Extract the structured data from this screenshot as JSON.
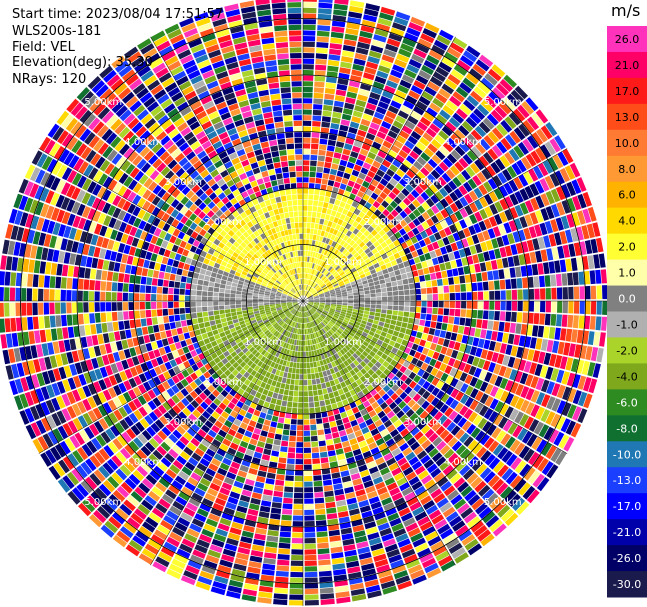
{
  "header": {
    "start_time": "Start time: 2023/08/04 17:51:57",
    "instrument": "WLS200s-181",
    "field": "Field: VEL",
    "elevation": "Elevation(deg): 35.30",
    "nrays": "NRays: 120"
  },
  "colorbar": {
    "unit": "m/s",
    "ticks": [
      "26.0",
      "21.0",
      "17.0",
      "13.0",
      "10.0",
      "8.0",
      "6.0",
      "4.0",
      "2.0",
      "1.0",
      "0.0",
      "-1.0",
      "-2.0",
      "-4.0",
      "-6.0",
      "-8.0",
      "-10.0",
      "-13.0",
      "-17.0",
      "-21.0",
      "-26.0",
      "-30.0"
    ],
    "colors": [
      "#ff33bb",
      "#ff0066",
      "#ff1a1a",
      "#ff4d1a",
      "#ff7a33",
      "#ff9933",
      "#ffb300",
      "#ffd900",
      "#ffff33",
      "#ffffaa",
      "#808080",
      "#b0b0b0",
      "#aad42a",
      "#7fa81c",
      "#2e8b22",
      "#0f7030",
      "#1f77b4",
      "#1a3fff",
      "#0000ff",
      "#0000aa",
      "#000066",
      "#1a1a4d"
    ]
  },
  "chart_data": {
    "type": "heatmap",
    "title": "",
    "field": "VEL",
    "unit": "m/s",
    "elevation_deg": 35.3,
    "n_rays": 120,
    "range_ring_labels": [
      "1.00km",
      "1.00km",
      "1.00km",
      "1.00km",
      "2.00km",
      "2.00km",
      "2.00km",
      "2.00km",
      "3.00km",
      "3.00km",
      "3.00km",
      "3.00km",
      "4.00km",
      "4.00km",
      "4.00km",
      "4.00km",
      "5.00km",
      "5.00km",
      "5.00km",
      "5.00km"
    ],
    "range_rings_km": [
      1,
      2,
      3,
      4,
      5
    ],
    "max_range_km": 5.4,
    "valid_data_range_km": 2.0,
    "near_field_summary": {
      "north_sector": "positive velocities 2.0 to 4.0 m/s (yellow)",
      "center_band": "near 0.0 m/s (gray)",
      "south_sector": "negative velocities -2.0 to -4.0 m/s (green)"
    },
    "far_field_summary": "noise: random values spanning -30.0 to 26.0 m/s",
    "color_levels": [
      26.0,
      21.0,
      17.0,
      13.0,
      10.0,
      8.0,
      6.0,
      4.0,
      2.0,
      1.0,
      0.0,
      -1.0,
      -2.0,
      -4.0,
      -6.0,
      -8.0,
      -10.0,
      -13.0,
      -17.0,
      -21.0,
      -26.0,
      -30.0
    ]
  }
}
